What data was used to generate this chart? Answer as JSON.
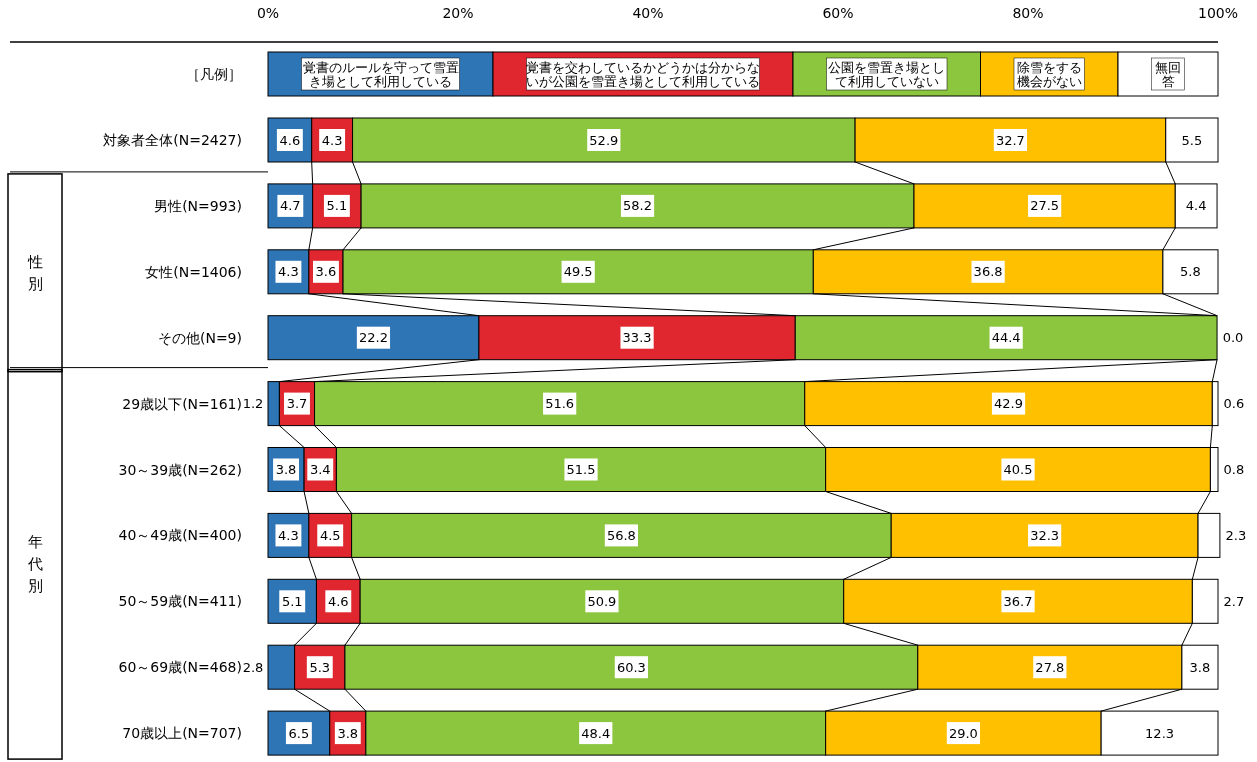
{
  "chart_data": {
    "type": "bar",
    "orientation": "horizontal",
    "stacked": true,
    "legend": "top",
    "categories": [
      "対象者全体(N=2427)",
      "男性(N=993)",
      "女性(N=1406)",
      "その他(N=9)",
      "29歳以下(N=161)",
      "30～39歳(N=262)",
      "40～49歳(N=400)",
      "50～59歳(N=411)",
      "60～69歳(N=468)",
      "70歳以上(N=707)"
    ],
    "xlim": [
      0,
      100
    ],
    "xticks": [
      {
        "value": 0,
        "label": "0%"
      },
      {
        "value": 20,
        "label": "20%"
      },
      {
        "value": 40,
        "label": "40%"
      },
      {
        "value": 60,
        "label": "60%"
      },
      {
        "value": 80,
        "label": "80%"
      },
      {
        "value": 100,
        "label": "100%"
      }
    ],
    "series": [
      {
        "name": "覚書のルールを守って雪置き場として利用している",
        "color": "#2e75b6",
        "values": [
          4.6,
          4.7,
          4.3,
          22.2,
          1.2,
          3.8,
          4.3,
          5.1,
          2.8,
          6.5
        ],
        "value_labels": [
          "4.6",
          "4.7",
          "4.3",
          "22.2",
          "1.2",
          "3.8",
          "4.3",
          "5.1",
          "2.8",
          "6.5"
        ]
      },
      {
        "name": "覚書を交わしているかどうかは分からないが公園を雪置き場として利用している",
        "color": "#e0262e",
        "values": [
          4.3,
          5.1,
          3.6,
          33.3,
          3.7,
          3.4,
          4.5,
          4.6,
          5.3,
          3.8
        ],
        "value_labels": [
          "4.3",
          "5.1",
          "3.6",
          "33.3",
          "3.7",
          "3.4",
          "4.5",
          "4.6",
          "5.3",
          "3.8"
        ]
      },
      {
        "name": "公園を雪置き場として利用していない",
        "color": "#8cc63f",
        "values": [
          52.9,
          58.2,
          49.5,
          44.4,
          51.6,
          51.5,
          56.8,
          50.9,
          60.3,
          48.4
        ],
        "value_labels": [
          "52.9",
          "58.2",
          "49.5",
          "44.4",
          "51.6",
          "51.5",
          "56.8",
          "50.9",
          "60.3",
          "48.4"
        ]
      },
      {
        "name": "除雪をする機会がない",
        "color": "#ffc000",
        "values": [
          32.7,
          27.5,
          36.8,
          0,
          42.9,
          40.5,
          32.3,
          36.7,
          27.8,
          29.0
        ],
        "value_labels": [
          "32.7",
          "27.5",
          "36.8",
          null,
          "42.9",
          "40.5",
          "32.3",
          "36.7",
          "27.8",
          "29.0"
        ]
      },
      {
        "name": "無回答",
        "color": "#ffffff",
        "values": [
          5.5,
          4.4,
          5.8,
          0,
          0.6,
          0.8,
          2.3,
          2.7,
          3.8,
          12.3
        ],
        "value_labels": [
          "5.5",
          "4.4",
          "5.8",
          "0.0",
          "0.6",
          "0.8",
          "2.3",
          "2.7",
          "3.8",
          "12.3"
        ]
      }
    ],
    "annotations": [
      "［凡例］",
      "性別",
      "年代別"
    ]
  }
}
